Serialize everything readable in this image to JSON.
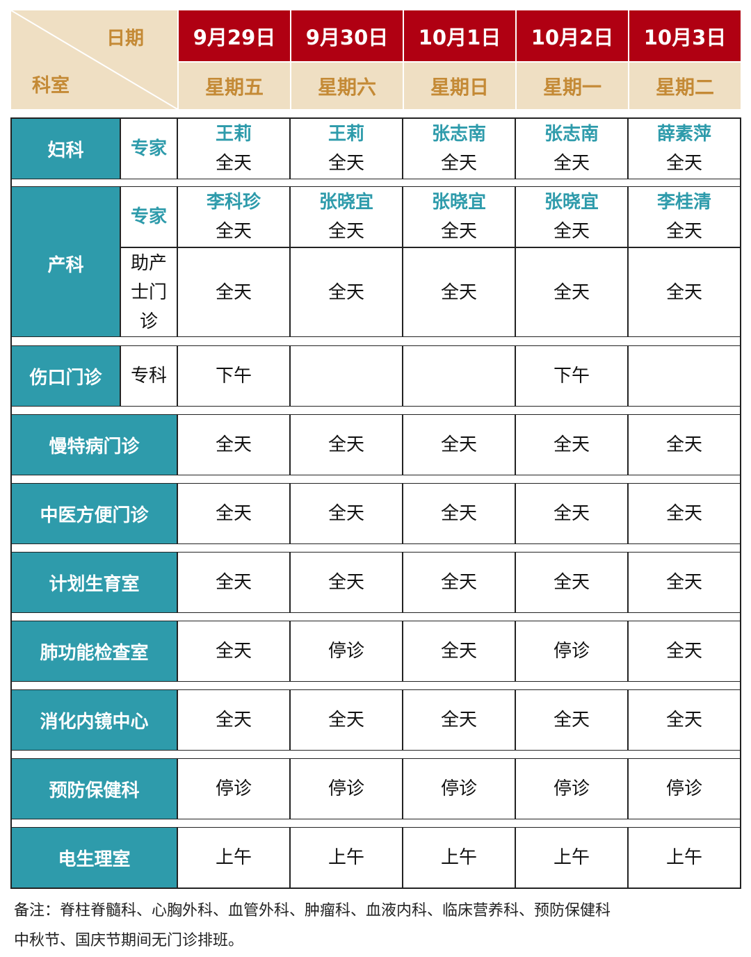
{
  "header": {
    "corner_top": "日期",
    "corner_bottom": "科室",
    "days": [
      {
        "date": "9月29日",
        "weekday": "星期五"
      },
      {
        "date": "9月30日",
        "weekday": "星期六"
      },
      {
        "date": "10月1日",
        "weekday": "星期日"
      },
      {
        "date": "10月2日",
        "weekday": "星期一"
      },
      {
        "date": "10月3日",
        "weekday": "星期二"
      }
    ]
  },
  "blocks": [
    {
      "dept": "妇科",
      "rows": [
        {
          "sub": "专家",
          "sub_style": "expert",
          "cells": [
            {
              "name": "王莉",
              "value": "全天"
            },
            {
              "name": "王莉",
              "value": "全天"
            },
            {
              "name": "张志南",
              "value": "全天"
            },
            {
              "name": "张志南",
              "value": "全天"
            },
            {
              "name": "薛素萍",
              "value": "全天"
            }
          ]
        }
      ]
    },
    {
      "dept": "产科",
      "rows": [
        {
          "sub": "专家",
          "sub_style": "expert",
          "cells": [
            {
              "name": "李科珍",
              "value": "全天"
            },
            {
              "name": "张晓宜",
              "value": "全天"
            },
            {
              "name": "张晓宜",
              "value": "全天"
            },
            {
              "name": "张晓宜",
              "value": "全天"
            },
            {
              "name": "李桂清",
              "value": "全天"
            }
          ]
        },
        {
          "sub": "助产士门诊",
          "cells": [
            {
              "value": "全天"
            },
            {
              "value": "全天"
            },
            {
              "value": "全天"
            },
            {
              "value": "全天"
            },
            {
              "value": "全天"
            }
          ]
        }
      ]
    },
    {
      "dept": "伤口门诊",
      "rows": [
        {
          "sub": "专科",
          "cells": [
            {
              "value": "下午"
            },
            {
              "value": ""
            },
            {
              "value": ""
            },
            {
              "value": "下午"
            },
            {
              "value": ""
            }
          ]
        }
      ]
    },
    {
      "dept": "慢特病门诊",
      "rows": [
        {
          "cells": [
            {
              "value": "全天"
            },
            {
              "value": "全天"
            },
            {
              "value": "全天"
            },
            {
              "value": "全天"
            },
            {
              "value": "全天"
            }
          ]
        }
      ]
    },
    {
      "dept": "中医方便门诊",
      "rows": [
        {
          "cells": [
            {
              "value": "全天"
            },
            {
              "value": "全天"
            },
            {
              "value": "全天"
            },
            {
              "value": "全天"
            },
            {
              "value": "全天"
            }
          ]
        }
      ]
    },
    {
      "dept": "计划生育室",
      "rows": [
        {
          "cells": [
            {
              "value": "全天"
            },
            {
              "value": "全天"
            },
            {
              "value": "全天"
            },
            {
              "value": "全天"
            },
            {
              "value": "全天"
            }
          ]
        }
      ]
    },
    {
      "dept": "肺功能检查室",
      "rows": [
        {
          "cells": [
            {
              "value": "全天"
            },
            {
              "value": "停诊"
            },
            {
              "value": "全天"
            },
            {
              "value": "停诊"
            },
            {
              "value": "全天"
            }
          ]
        }
      ]
    },
    {
      "dept": "消化内镜中心",
      "rows": [
        {
          "cells": [
            {
              "value": "全天"
            },
            {
              "value": "全天"
            },
            {
              "value": "全天"
            },
            {
              "value": "全天"
            },
            {
              "value": "全天"
            }
          ]
        }
      ]
    },
    {
      "dept": "预防保健科",
      "rows": [
        {
          "cells": [
            {
              "value": "停诊"
            },
            {
              "value": "停诊"
            },
            {
              "value": "停诊"
            },
            {
              "value": "停诊"
            },
            {
              "value": "停诊"
            }
          ]
        }
      ]
    },
    {
      "dept": "电生理室",
      "rows": [
        {
          "cells": [
            {
              "value": "上午"
            },
            {
              "value": "上午"
            },
            {
              "value": "上午"
            },
            {
              "value": "上午"
            },
            {
              "value": "上午"
            }
          ]
        }
      ]
    }
  ],
  "notes": [
    "备注：脊柱脊髓科、心胸外科、血管外科、肿瘤科、血液内科、临床营养科、预防保健科",
    "中秋节、国庆节期间无门诊排班。"
  ],
  "colors": {
    "date_bg": "#b00012",
    "header_bg": "#efdfc3",
    "header_text": "#c48a36",
    "dept_bg": "#2e9bab",
    "doctor_text": "#2e9bab"
  }
}
